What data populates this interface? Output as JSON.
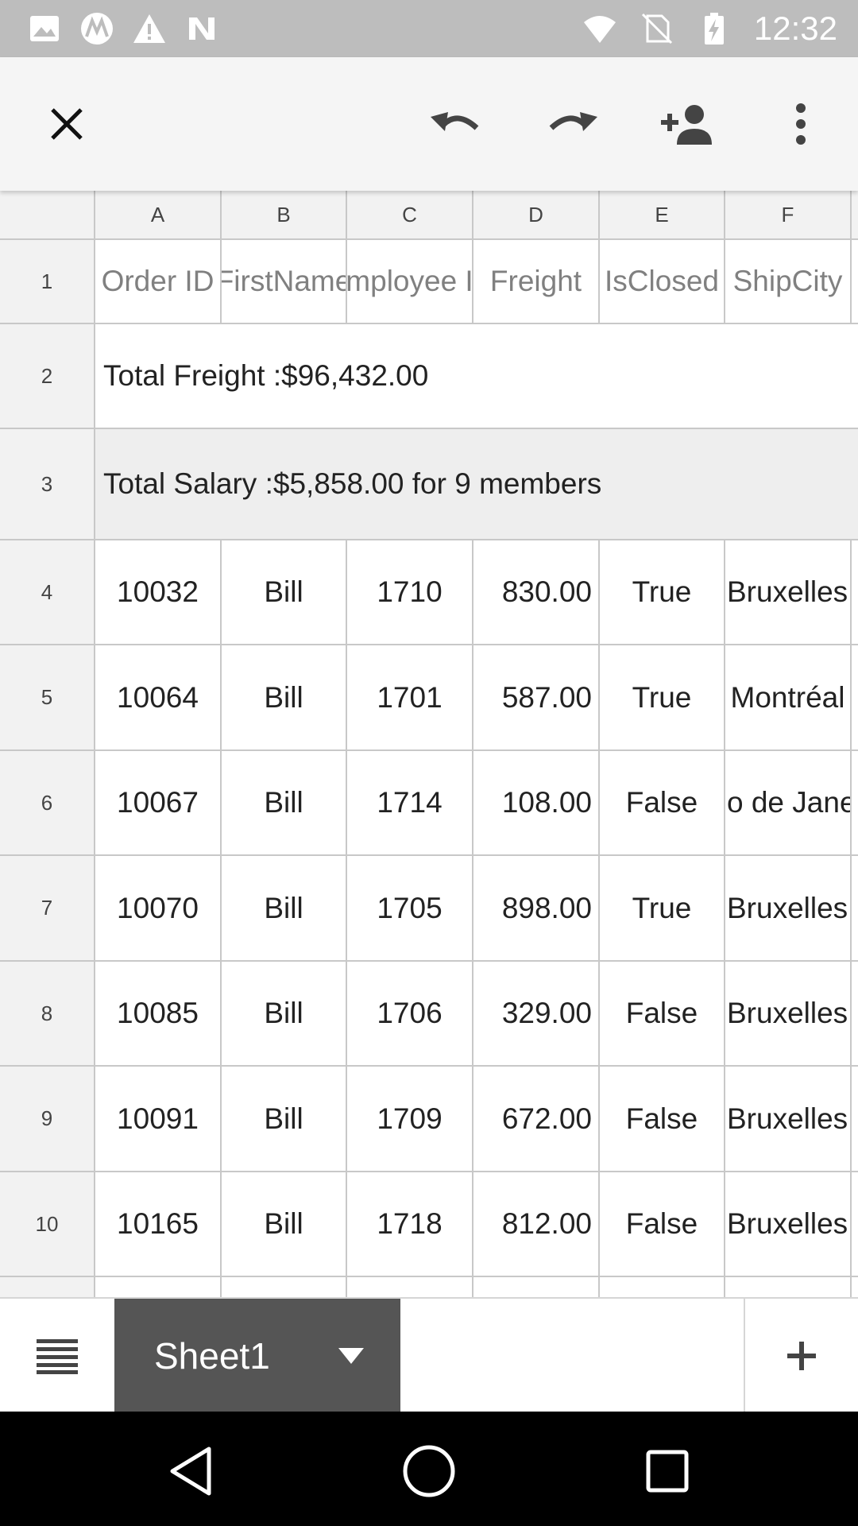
{
  "status_bar": {
    "time": "12:32",
    "left_icons": [
      "image-icon",
      "motorola-icon",
      "warning-icon",
      "nfc-icon"
    ],
    "right_icons": [
      "wifi-icon",
      "no-sim-icon",
      "battery-charging-icon"
    ]
  },
  "toolbar": {
    "close_icon": "close-icon",
    "undo_icon": "undo-icon",
    "redo_icon": "redo-icon",
    "share_icon": "add-person-icon",
    "more_icon": "more-vert-icon"
  },
  "sheet": {
    "columns": [
      "A",
      "B",
      "C",
      "D",
      "E",
      "F"
    ],
    "row_numbers": [
      "1",
      "2",
      "3",
      "4",
      "5",
      "6",
      "7",
      "8",
      "9",
      "10"
    ],
    "header_row": [
      "Order ID",
      "FirstName",
      "mployee I",
      "Freight",
      "IsClosed",
      "ShipCity"
    ],
    "total_freight": "Total Freight :$96,432.00",
    "total_salary": "Total Salary :$5,858.00 for 9 members",
    "rows": [
      [
        "10032",
        "Bill",
        "1710",
        "830.00",
        "True",
        "Bruxelles"
      ],
      [
        "10064",
        "Bill",
        "1701",
        "587.00",
        "True",
        "Montréal"
      ],
      [
        "10067",
        "Bill",
        "1714",
        "108.00",
        "False",
        "o de Jane"
      ],
      [
        "10070",
        "Bill",
        "1705",
        "898.00",
        "True",
        "Bruxelles"
      ],
      [
        "10085",
        "Bill",
        "1706",
        "329.00",
        "False",
        "Bruxelles"
      ],
      [
        "10091",
        "Bill",
        "1709",
        "672.00",
        "False",
        "Bruxelles"
      ],
      [
        "10165",
        "Bill",
        "1718",
        "812.00",
        "False",
        "Bruxelles"
      ]
    ]
  },
  "sheet_bar": {
    "active_sheet": "Sheet1",
    "add_label": "+"
  },
  "colors": {
    "status_bar": "#bdbdbd",
    "toolbar": "#f5f5f5",
    "active_tab": "#555555",
    "header_cell": "#f2f2f2"
  }
}
